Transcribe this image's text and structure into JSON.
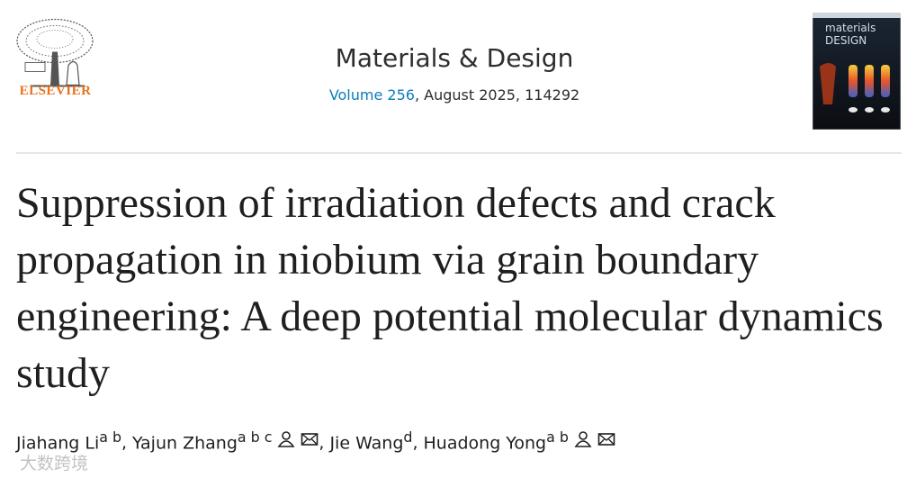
{
  "publisher": "ELSEVIER",
  "journal": {
    "name": "Materials & Design",
    "volume_link": "Volume 256",
    "details": ", August 2025, 114292"
  },
  "cover": {
    "line1": "materials",
    "line2": "DESIGN"
  },
  "article": {
    "title": "Suppression of irradiation defects and crack propagation in niobium via grain boundary engineering: A deep potential molecular dynamics study"
  },
  "author_separator": ",",
  "authors": [
    {
      "name": "Jiahang Li",
      "affiliations": "a b",
      "icons": false
    },
    {
      "name": "Yajun Zhang",
      "affiliations": "a b c",
      "icons": true
    },
    {
      "name": "Jie Wang",
      "affiliations": "d",
      "icons": false
    },
    {
      "name": "Huadong Yong",
      "affiliations": "a b",
      "icons": true
    }
  ],
  "watermark": "大数跨境"
}
